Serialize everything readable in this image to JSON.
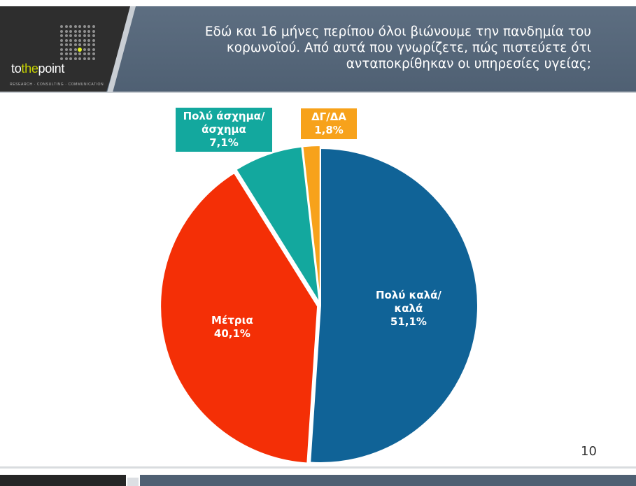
{
  "header": {
    "logo": {
      "text_a": "to",
      "text_b": "the",
      "text_c": "point",
      "tagline": "RESEARCH · CONSULTING · COMMUNICATION"
    },
    "title_lines": [
      "Εδώ και 16 μήνες περίπου όλοι βιώνουμε την πανδημία του",
      "κορωνοϊού. Από αυτά που γνωρίζετε, πώς πιστεύετε ότι",
      "ανταποκρίθηκαν οι υπηρεσίες υγείας;"
    ]
  },
  "page_number": "10",
  "colors": {
    "blue": "#106397",
    "red": "#f42f06",
    "teal": "#13a89e",
    "orange": "#f7a21b"
  },
  "chart_data": {
    "type": "pie",
    "title": "",
    "slices": [
      {
        "label_lines": [
          "Πολύ καλά/",
          "καλά"
        ],
        "value": 51.1,
        "value_label": "51,1%",
        "color": "#106397",
        "label_position": "inside"
      },
      {
        "label_lines": [
          "Μέτρια"
        ],
        "value": 40.1,
        "value_label": "40,1%",
        "color": "#f42f06",
        "label_position": "inside"
      },
      {
        "label_lines": [
          "Πολύ άσχημα/",
          "άσχημα"
        ],
        "value": 7.1,
        "value_label": "7,1%",
        "color": "#13a89e",
        "label_position": "callout"
      },
      {
        "label_lines": [
          "ΔΓ/ΔΑ"
        ],
        "value": 1.8,
        "value_label": "1,8%",
        "color": "#f7a21b",
        "label_position": "callout"
      }
    ]
  }
}
